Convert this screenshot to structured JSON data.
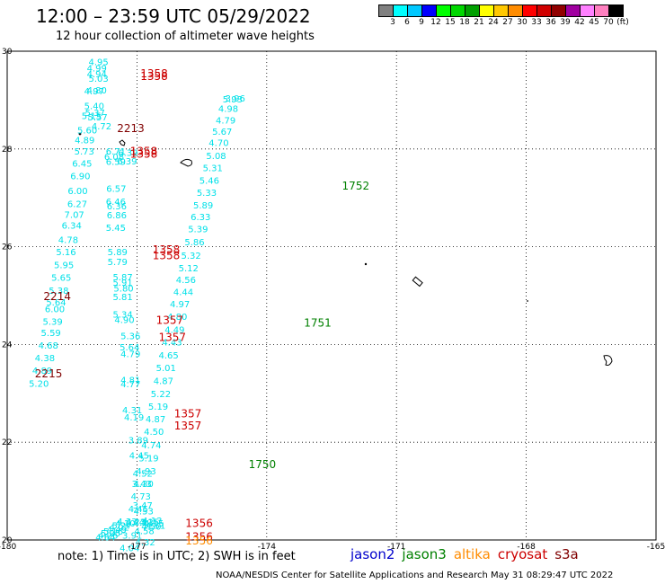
{
  "header": {
    "title": "12:00 – 23:59 UTC 05/29/2022",
    "subtitle": "12 hour collection of altimeter wave heights"
  },
  "legend": {
    "colors": [
      "#808080",
      "#00ffff",
      "#00c8ff",
      "#0000ff",
      "#00ff00",
      "#00d800",
      "#00a000",
      "#ffff00",
      "#ffc800",
      "#ff8c00",
      "#ff0000",
      "#d00000",
      "#900000",
      "#a000a0",
      "#ff80ff",
      "#ff80c0",
      "#000000"
    ],
    "labels": [
      "3",
      "6",
      "9",
      "12",
      "15",
      "18",
      "21",
      "24",
      "27",
      "30",
      "33",
      "36",
      "39",
      "42",
      "45",
      "70",
      "(ft)"
    ]
  },
  "footer": {
    "note": "note:  1) Time is in UTC;  2) SWH is in feet",
    "satellites": [
      {
        "name": "jason2",
        "color": "#0000cc"
      },
      {
        "name": "jason3",
        "color": "#008000"
      },
      {
        "name": "altika",
        "color": "#ff8c00"
      },
      {
        "name": "cryosat",
        "color": "#cc0000"
      },
      {
        "name": "s3a",
        "color": "#800000"
      }
    ],
    "credit": "NOAA/NESDIS Center for Satellite Applications and Research    May 31 08:29:47 UTC 2022"
  },
  "chart_data": {
    "type": "scatter",
    "title": "12:00 – 23:59 UTC 05/29/2022",
    "subtitle": "12 hour collection of altimeter wave heights",
    "xlim": [
      -180,
      -165
    ],
    "ylim": [
      20,
      30
    ],
    "x_ticks": [
      "-180",
      "-177",
      "-174",
      "-171",
      "-168",
      "-165"
    ],
    "y_ticks": [
      "20",
      "22",
      "24",
      "26",
      "28",
      "30"
    ],
    "grid": true,
    "tracks": [
      {
        "name": "track A",
        "color": "#00e0e8",
        "points": [
          {
            "lon": -178.12,
            "lat": 29.79,
            "v": "4.95"
          },
          {
            "lon": -178.16,
            "lat": 29.66,
            "v": "4.99"
          },
          {
            "lon": -178.16,
            "lat": 29.54,
            "v": "4.94"
          },
          {
            "lon": -178.12,
            "lat": 29.45,
            "v": "5.03"
          },
          {
            "lon": -178.16,
            "lat": 29.21,
            "v": "4.80"
          },
          {
            "lon": -178.22,
            "lat": 29.19,
            "v": "4.97"
          },
          {
            "lon": -178.22,
            "lat": 28.89,
            "v": "5.40"
          },
          {
            "lon": -178.2,
            "lat": 28.75,
            "v": "5.37"
          },
          {
            "lon": -178.28,
            "lat": 28.69,
            "v": "5.15"
          },
          {
            "lon": -178.14,
            "lat": 28.66,
            "v": "5.57"
          },
          {
            "lon": -178.05,
            "lat": 28.47,
            "v": "4.72"
          },
          {
            "lon": -178.38,
            "lat": 28.39,
            "v": "5.60"
          },
          {
            "lon": -178.44,
            "lat": 28.19,
            "v": "4.89"
          },
          {
            "lon": -178.45,
            "lat": 27.96,
            "v": "5.73"
          },
          {
            "lon": -178.5,
            "lat": 27.71,
            "v": "6.45"
          },
          {
            "lon": -178.54,
            "lat": 27.45,
            "v": "6.90"
          },
          {
            "lon": -178.6,
            "lat": 27.15,
            "v": "6.00"
          },
          {
            "lon": -178.61,
            "lat": 26.88,
            "v": "6.27"
          },
          {
            "lon": -178.68,
            "lat": 26.66,
            "v": "7.07"
          },
          {
            "lon": -178.74,
            "lat": 26.44,
            "v": "6.34"
          },
          {
            "lon": -178.82,
            "lat": 26.15,
            "v": "4.78"
          },
          {
            "lon": -178.87,
            "lat": 25.9,
            "v": "5.16"
          },
          {
            "lon": -178.92,
            "lat": 25.63,
            "v": "5.95"
          },
          {
            "lon": -178.98,
            "lat": 25.38,
            "v": "5.65"
          },
          {
            "lon": -179.04,
            "lat": 25.11,
            "v": "5.38"
          },
          {
            "lon": -179.1,
            "lat": 24.87,
            "v": "5.64"
          },
          {
            "lon": -179.13,
            "lat": 24.73,
            "v": "6.00"
          },
          {
            "lon": -179.18,
            "lat": 24.48,
            "v": "5.39"
          },
          {
            "lon": -179.22,
            "lat": 24.25,
            "v": "5.59"
          },
          {
            "lon": -179.28,
            "lat": 23.99,
            "v": "4.68"
          },
          {
            "lon": -179.36,
            "lat": 23.73,
            "v": "4.38"
          },
          {
            "lon": -179.42,
            "lat": 23.47,
            "v": "4.89"
          },
          {
            "lon": -179.5,
            "lat": 23.21,
            "v": "5.20"
          }
        ]
      },
      {
        "name": "track B",
        "color": "#00e0e8",
        "points": [
          {
            "lon": -177.72,
            "lat": 27.96,
            "v": "6.71"
          },
          {
            "lon": -177.76,
            "lat": 27.85,
            "v": "6.08"
          },
          {
            "lon": -177.72,
            "lat": 27.75,
            "v": "6.59"
          },
          {
            "lon": -177.44,
            "lat": 27.93,
            "v": "6.39"
          },
          {
            "lon": -177.46,
            "lat": 27.76,
            "v": "6.39"
          },
          {
            "lon": -177.71,
            "lat": 27.2,
            "v": "6.57"
          },
          {
            "lon": -177.72,
            "lat": 26.93,
            "v": "6.46"
          },
          {
            "lon": -177.7,
            "lat": 26.84,
            "v": "6.36"
          },
          {
            "lon": -177.7,
            "lat": 26.65,
            "v": "6.86"
          },
          {
            "lon": -177.72,
            "lat": 26.4,
            "v": "5.45"
          },
          {
            "lon": -177.68,
            "lat": 25.9,
            "v": "5.89"
          },
          {
            "lon": -177.68,
            "lat": 25.7,
            "v": "5.79"
          },
          {
            "lon": -177.56,
            "lat": 25.39,
            "v": "5.87"
          },
          {
            "lon": -177.56,
            "lat": 25.28,
            "v": "5.91"
          },
          {
            "lon": -177.54,
            "lat": 25.16,
            "v": "5.80"
          },
          {
            "lon": -177.56,
            "lat": 24.98,
            "v": "5.81"
          },
          {
            "lon": -177.56,
            "lat": 24.62,
            "v": "5.34"
          },
          {
            "lon": -177.52,
            "lat": 24.51,
            "v": "4.90"
          },
          {
            "lon": -177.38,
            "lat": 24.18,
            "v": "5.36"
          },
          {
            "lon": -177.4,
            "lat": 23.95,
            "v": "5.64"
          },
          {
            "lon": -177.38,
            "lat": 23.81,
            "v": "4.79"
          },
          {
            "lon": -177.38,
            "lat": 23.28,
            "v": "4.81"
          },
          {
            "lon": -177.38,
            "lat": 23.2,
            "v": "4.77"
          },
          {
            "lon": -177.34,
            "lat": 22.67,
            "v": "4.31"
          },
          {
            "lon": -177.3,
            "lat": 22.52,
            "v": "4.19"
          },
          {
            "lon": -177.2,
            "lat": 22.05,
            "v": "3.89"
          },
          {
            "lon": -177.18,
            "lat": 21.74,
            "v": "4.45"
          },
          {
            "lon": -177.1,
            "lat": 21.37,
            "v": "4.52"
          },
          {
            "lon": -177.12,
            "lat": 21.16,
            "v": "3.43"
          },
          {
            "lon": -177.1,
            "lat": 20.72,
            "v": "3.47"
          },
          {
            "lon": -177.08,
            "lat": 20.6,
            "v": "4.53"
          },
          {
            "lon": -177.08,
            "lat": 20.37,
            "v": "4.13"
          },
          {
            "lon": -177.06,
            "lat": 20.19,
            "v": "4.58"
          },
          {
            "lon": -177.04,
            "lat": 19.96,
            "v": "4.32"
          },
          {
            "lon": -176.88,
            "lat": 19.72,
            "v": "4.13"
          },
          {
            "lon": -176.95,
            "lat": 19.5,
            "v": "4.15"
          },
          {
            "lon": -176.84,
            "lat": 19.33,
            "v": "4.15"
          },
          {
            "lon": -176.8,
            "lat": 19.05,
            "v": "4.51"
          },
          {
            "lon": -176.9,
            "lat": 18.87,
            "v": "4.50"
          }
        ]
      },
      {
        "name": "track C",
        "color": "#00e0e8",
        "points": [
          {
            "lon": -174.96,
            "lat": 29.04,
            "v": "3.96"
          },
          {
            "lon": -175.02,
            "lat": 29.03,
            "v": "5.93"
          },
          {
            "lon": -175.12,
            "lat": 28.83,
            "v": "4.98"
          },
          {
            "lon": -175.18,
            "lat": 28.59,
            "v": "4.79"
          },
          {
            "lon": -175.26,
            "lat": 28.36,
            "v": "5.67"
          },
          {
            "lon": -175.34,
            "lat": 28.13,
            "v": "4.70"
          },
          {
            "lon": -175.4,
            "lat": 27.87,
            "v": "5.08"
          },
          {
            "lon": -175.48,
            "lat": 27.62,
            "v": "5.31"
          },
          {
            "lon": -175.56,
            "lat": 27.36,
            "v": "5.46"
          },
          {
            "lon": -175.62,
            "lat": 27.11,
            "v": "5.33"
          },
          {
            "lon": -175.7,
            "lat": 26.86,
            "v": "5.89"
          },
          {
            "lon": -175.76,
            "lat": 26.62,
            "v": "6.33"
          },
          {
            "lon": -175.82,
            "lat": 26.37,
            "v": "5.39"
          },
          {
            "lon": -175.9,
            "lat": 26.1,
            "v": "5.86"
          },
          {
            "lon": -175.98,
            "lat": 25.83,
            "v": "5.32"
          },
          {
            "lon": -176.04,
            "lat": 25.57,
            "v": "5.12"
          },
          {
            "lon": -176.1,
            "lat": 25.33,
            "v": "4.56"
          },
          {
            "lon": -176.16,
            "lat": 25.08,
            "v": "4.44"
          },
          {
            "lon": -176.24,
            "lat": 24.83,
            "v": "4.97"
          },
          {
            "lon": -176.3,
            "lat": 24.58,
            "v": "4.80"
          },
          {
            "lon": -176.36,
            "lat": 24.31,
            "v": "4.49"
          },
          {
            "lon": -176.42,
            "lat": 24.05,
            "v": "4.43"
          },
          {
            "lon": -176.5,
            "lat": 23.79,
            "v": "4.65"
          },
          {
            "lon": -176.56,
            "lat": 23.53,
            "v": "5.01"
          },
          {
            "lon": -176.62,
            "lat": 23.26,
            "v": "4.87"
          },
          {
            "lon": -176.68,
            "lat": 23.0,
            "v": "5.22"
          },
          {
            "lon": -176.74,
            "lat": 22.74,
            "v": "5.19"
          },
          {
            "lon": -176.8,
            "lat": 22.48,
            "v": "4.87"
          },
          {
            "lon": -176.84,
            "lat": 22.22,
            "v": "4.50"
          },
          {
            "lon": -176.9,
            "lat": 21.95,
            "v": "4.74"
          },
          {
            "lon": -176.96,
            "lat": 21.68,
            "v": "5.19"
          },
          {
            "lon": -177.02,
            "lat": 21.42,
            "v": "4.93"
          },
          {
            "lon": -177.08,
            "lat": 21.16,
            "v": "4.30"
          },
          {
            "lon": -177.14,
            "lat": 20.9,
            "v": "4.73"
          },
          {
            "lon": -177.2,
            "lat": 20.64,
            "v": "4.45"
          },
          {
            "lon": -177.26,
            "lat": 20.38,
            "v": "4.23"
          },
          {
            "lon": -177.34,
            "lat": 20.1,
            "v": "3.91"
          },
          {
            "lon": -177.4,
            "lat": 19.84,
            "v": "4.04"
          },
          {
            "lon": -177.46,
            "lat": 19.58,
            "v": "4.33"
          },
          {
            "lon": -177.5,
            "lat": 19.3,
            "v": "4.10"
          },
          {
            "lon": -177.58,
            "lat": 19.04,
            "v": "5.27"
          },
          {
            "lon": -177.64,
            "lat": 18.77,
            "v": "4.02"
          },
          {
            "lon": -177.7,
            "lat": 18.49,
            "v": "4.49"
          },
          {
            "lon": -177.78,
            "lat": 18.23,
            "v": "5.16"
          },
          {
            "lon": -177.84,
            "lat": 17.96,
            "v": "5.25"
          },
          {
            "lon": -177.9,
            "lat": 17.7,
            "v": "4.26"
          },
          {
            "lon": -177.96,
            "lat": 17.44,
            "v": "4.64"
          }
        ]
      }
    ],
    "pass_times": [
      {
        "label": "1358",
        "lon": -176.92,
        "lat": 29.56,
        "color": "#cc0000"
      },
      {
        "label": "1358",
        "lon": -176.92,
        "lat": 29.5,
        "color": "#cc0000"
      },
      {
        "label": "2213",
        "lon": -177.46,
        "lat": 28.44,
        "color": "#800000"
      },
      {
        "label": "1358",
        "lon": -177.16,
        "lat": 27.97,
        "color": "#cc0000"
      },
      {
        "label": "1358",
        "lon": -177.16,
        "lat": 27.91,
        "color": "#cc0000"
      },
      {
        "label": "1358",
        "lon": -176.64,
        "lat": 25.96,
        "color": "#cc0000"
      },
      {
        "label": "1358",
        "lon": -176.64,
        "lat": 25.84,
        "color": "#cc0000"
      },
      {
        "label": "2214",
        "lon": -179.16,
        "lat": 25.0,
        "color": "#800000"
      },
      {
        "label": "1357",
        "lon": -176.56,
        "lat": 24.51,
        "color": "#cc0000"
      },
      {
        "label": "1357",
        "lon": -176.5,
        "lat": 24.16,
        "color": "#cc0000"
      },
      {
        "label": "2215",
        "lon": -179.36,
        "lat": 23.42,
        "color": "#800000"
      },
      {
        "label": "1357",
        "lon": -176.14,
        "lat": 22.6,
        "color": "#cc0000"
      },
      {
        "label": "1357",
        "lon": -176.14,
        "lat": 22.35,
        "color": "#cc0000"
      },
      {
        "label": "1356",
        "lon": -175.88,
        "lat": 20.36,
        "color": "#cc0000"
      },
      {
        "label": "1356",
        "lon": -175.88,
        "lat": 20.08,
        "color": "#cc0000"
      },
      {
        "label": "1356",
        "lon": -175.88,
        "lat": 20.0,
        "color": "#ff8c00"
      },
      {
        "label": "1752",
        "lon": -172.26,
        "lat": 27.26,
        "color": "#008000"
      },
      {
        "label": "1751",
        "lon": -173.14,
        "lat": 24.46,
        "color": "#008000"
      },
      {
        "label": "1750",
        "lon": -174.42,
        "lat": 21.56,
        "color": "#008000"
      }
    ]
  }
}
